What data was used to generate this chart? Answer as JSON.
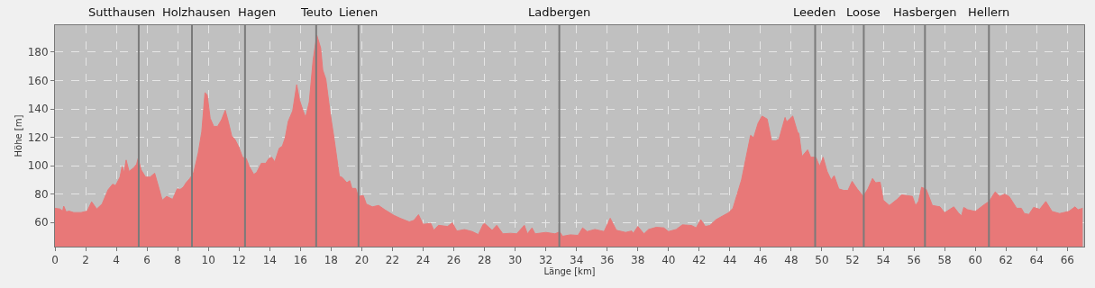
{
  "chart_data": {
    "type": "area",
    "xlabel": "Länge [km]",
    "ylabel": "Höhe [m]",
    "xlim": [
      0,
      67.1
    ],
    "ylim": [
      43,
      199
    ],
    "xticks": [
      0,
      2,
      4,
      6,
      8,
      10,
      12,
      14,
      16,
      18,
      20,
      22,
      24,
      26,
      28,
      30,
      32,
      34,
      36,
      38,
      40,
      42,
      44,
      46,
      48,
      50,
      52,
      54,
      56,
      58,
      60,
      62,
      64,
      66
    ],
    "yticks": [
      60,
      80,
      100,
      120,
      140,
      160,
      180
    ],
    "grid": true,
    "legend": false,
    "x": [
      0,
      0.33,
      0.5,
      0.57,
      0.73,
      0.92,
      1.22,
      1.7,
      2.1,
      2.39,
      2.72,
      3.07,
      3.46,
      3.76,
      3.95,
      4.24,
      4.38,
      4.5,
      4.64,
      4.83,
      5.13,
      5.32,
      5.42,
      5.62,
      5.91,
      6.2,
      6.5,
      6.79,
      6.99,
      7.28,
      7.67,
      7.97,
      8.16,
      8.36,
      8.55,
      8.79,
      9.04,
      9.34,
      9.57,
      9.78,
      9.92,
      10.12,
      10.35,
      10.6,
      10.86,
      11.1,
      11.3,
      11.53,
      11.73,
      11.98,
      12.23,
      12.47,
      12.66,
      12.96,
      13.15,
      13.45,
      13.74,
      13.94,
      14.13,
      14.33,
      14.62,
      14.82,
      15.01,
      15.21,
      15.5,
      15.76,
      15.95,
      16.19,
      16.34,
      16.58,
      16.83,
      17.07,
      17.32,
      17.46,
      17.66,
      17.95,
      18.19,
      18.54,
      18.73,
      19.03,
      19.22,
      19.36,
      19.61,
      19.77,
      20.1,
      20.3,
      20.69,
      21.1,
      21.5,
      22.1,
      22.5,
      23.1,
      23.4,
      23.7,
      24.0,
      24.5,
      24.7,
      25.0,
      25.6,
      25.9,
      26.2,
      26.7,
      27.2,
      27.6,
      27.9,
      28.0,
      28.5,
      28.8,
      29.2,
      29.7,
      30.1,
      30.6,
      30.8,
      31.1,
      31.3,
      32.0,
      32.6,
      32.9,
      33.1,
      33.6,
      34.1,
      34.4,
      34.7,
      35.2,
      35.8,
      36.2,
      36.6,
      37.2,
      37.6,
      37.7,
      38.0,
      38.4,
      38.7,
      39.2,
      39.7,
      40.0,
      40.5,
      40.9,
      41.5,
      41.8,
      42.1,
      42.4,
      42.7,
      43.1,
      43.6,
      43.9,
      44.2,
      44.76,
      45.35,
      45.55,
      45.84,
      46.1,
      46.43,
      46.72,
      47.0,
      47.2,
      47.6,
      47.7,
      48.1,
      48.4,
      48.5,
      48.7,
      49.07,
      49.27,
      49.6,
      49.85,
      50.08,
      50.34,
      50.6,
      50.8,
      51.1,
      51.42,
      51.7,
      51.97,
      52.3,
      52.7,
      53.0,
      53.3,
      53.5,
      53.8,
      54.0,
      54.4,
      54.9,
      55.2,
      55.5,
      55.9,
      56.1,
      56.3,
      56.5,
      56.8,
      57.2,
      57.7,
      58.0,
      58.3,
      58.6,
      58.9,
      59.1,
      59.25,
      59.5,
      60.0,
      60.6,
      60.9,
      61.3,
      61.6,
      61.9,
      62.2,
      62.7,
      63.0,
      63.2,
      63.5,
      63.8,
      64.2,
      64.6,
      65.0,
      65.5,
      66.1,
      66.5,
      66.7,
      67.0
    ],
    "series": [
      {
        "color": "#e87878",
        "values": [
          70,
          69.5,
          68,
          71.5,
          67.5,
          68,
          67,
          67,
          68,
          74.6,
          69.5,
          73,
          83,
          87,
          86,
          92,
          99.6,
          95,
          104,
          96,
          98.5,
          101,
          105,
          97,
          92,
          92,
          94.7,
          83.7,
          75.7,
          78.4,
          76.3,
          83.7,
          83.3,
          84.8,
          88,
          91,
          95,
          109,
          124,
          151.4,
          150,
          133.4,
          127.7,
          127.7,
          132.4,
          139,
          131,
          120.7,
          118.6,
          113.3,
          106,
          105,
          99.6,
          93.9,
          95.3,
          101.7,
          101.7,
          105,
          106,
          102.7,
          112.3,
          113.7,
          119.7,
          131.3,
          138.7,
          157.1,
          146,
          138.3,
          134,
          145,
          174.7,
          192,
          183,
          167.3,
          161,
          136.6,
          119.7,
          92.6,
          91.7,
          88,
          89.4,
          84,
          84,
          78.4,
          79,
          73,
          71,
          72,
          69,
          65,
          63,
          60.4,
          61.5,
          65.5,
          58.7,
          59.4,
          54.5,
          58,
          57.2,
          59.8,
          54,
          55,
          53.6,
          51.5,
          58.3,
          59.4,
          54.5,
          58,
          52,
          52.4,
          52,
          58,
          52,
          56.2,
          52,
          53,
          52,
          53.4,
          50.3,
          51.3,
          50.9,
          56.2,
          53.6,
          55.1,
          53.6,
          63,
          54.5,
          53,
          54,
          52.4,
          57.2,
          52,
          55.1,
          56.6,
          56.2,
          53.6,
          55.1,
          58.3,
          57.9,
          56.2,
          62,
          57.2,
          57.9,
          62,
          65,
          66.8,
          70,
          90,
          121.4,
          119.7,
          130,
          135,
          132.9,
          117.6,
          117.6,
          118.6,
          134,
          130.8,
          135,
          124,
          122.7,
          106.5,
          111.2,
          106,
          106,
          99.6,
          106,
          96,
          90,
          93,
          83.7,
          82.6,
          82.6,
          89,
          83.7,
          78.4,
          83.7,
          91,
          88,
          88.4,
          75.7,
          72,
          76.3,
          79.5,
          79,
          78.4,
          72,
          74.8,
          84.8,
          83.3,
          72,
          71,
          66.8,
          69,
          71,
          66.8,
          64.7,
          70.6,
          69,
          67.8,
          72.7,
          74.8,
          81.6,
          78.4,
          80,
          78.4,
          70,
          70,
          66.3,
          65.7,
          70.6,
          69.3,
          74.8,
          67.8,
          66.3,
          67.8,
          71,
          69,
          70
        ]
      }
    ],
    "ref_lines": [
      {
        "axis": "x",
        "value": 5.46,
        "label": "Sutthausen",
        "color": "#7a7a7a"
      },
      {
        "axis": "x",
        "value": 8.93,
        "label": "Holzhausen",
        "color": "#7a7a7a"
      },
      {
        "axis": "x",
        "value": 12.39,
        "label": "Hagen",
        "color": "#7a7a7a"
      },
      {
        "axis": "x",
        "value": 17.03,
        "label": "Teuto",
        "color": "#7a7a7a"
      },
      {
        "axis": "x",
        "value": 19.79,
        "label": "Lienen",
        "color": "#7a7a7a"
      },
      {
        "axis": "x",
        "value": 32.88,
        "label": "Ladbergen",
        "color": "#7a7a7a"
      },
      {
        "axis": "x",
        "value": 49.56,
        "label": "Leeden",
        "color": "#7a7a7a"
      },
      {
        "axis": "x",
        "value": 52.73,
        "label": "Loose",
        "color": "#7a7a7a"
      },
      {
        "axis": "x",
        "value": 56.72,
        "label": "Hasbergen",
        "color": "#7a7a7a"
      },
      {
        "axis": "x",
        "value": 60.89,
        "label": "Hellern",
        "color": "#7a7a7a"
      }
    ]
  }
}
